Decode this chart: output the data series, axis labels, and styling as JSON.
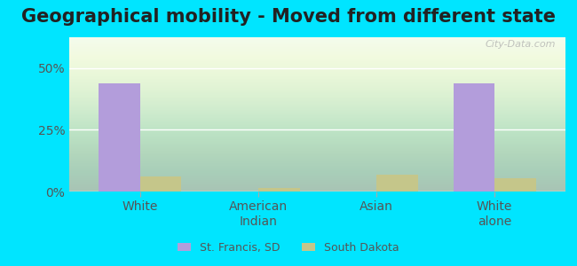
{
  "title": "Geographical mobility - Moved from different state",
  "categories": [
    "White",
    "American\nIndian",
    "Asian",
    "White\nalone"
  ],
  "st_francis_values": [
    44.0,
    0.0,
    0.0,
    44.0
  ],
  "south_dakota_values": [
    6.0,
    1.5,
    7.0,
    5.5
  ],
  "st_francis_color": "#b39ddb",
  "south_dakota_color": "#c5c68a",
  "ylim": [
    0,
    62.5
  ],
  "yticks": [
    0,
    25,
    50
  ],
  "ytick_labels": [
    "0%",
    "25%",
    "50%"
  ],
  "legend_labels": [
    "St. Francis, SD",
    "South Dakota"
  ],
  "bar_width": 0.35,
  "background_color": "#f0faf0",
  "outer_bg": "#00e5ff",
  "title_fontsize": 15,
  "axis_label_fontsize": 10,
  "legend_fontsize": 9
}
